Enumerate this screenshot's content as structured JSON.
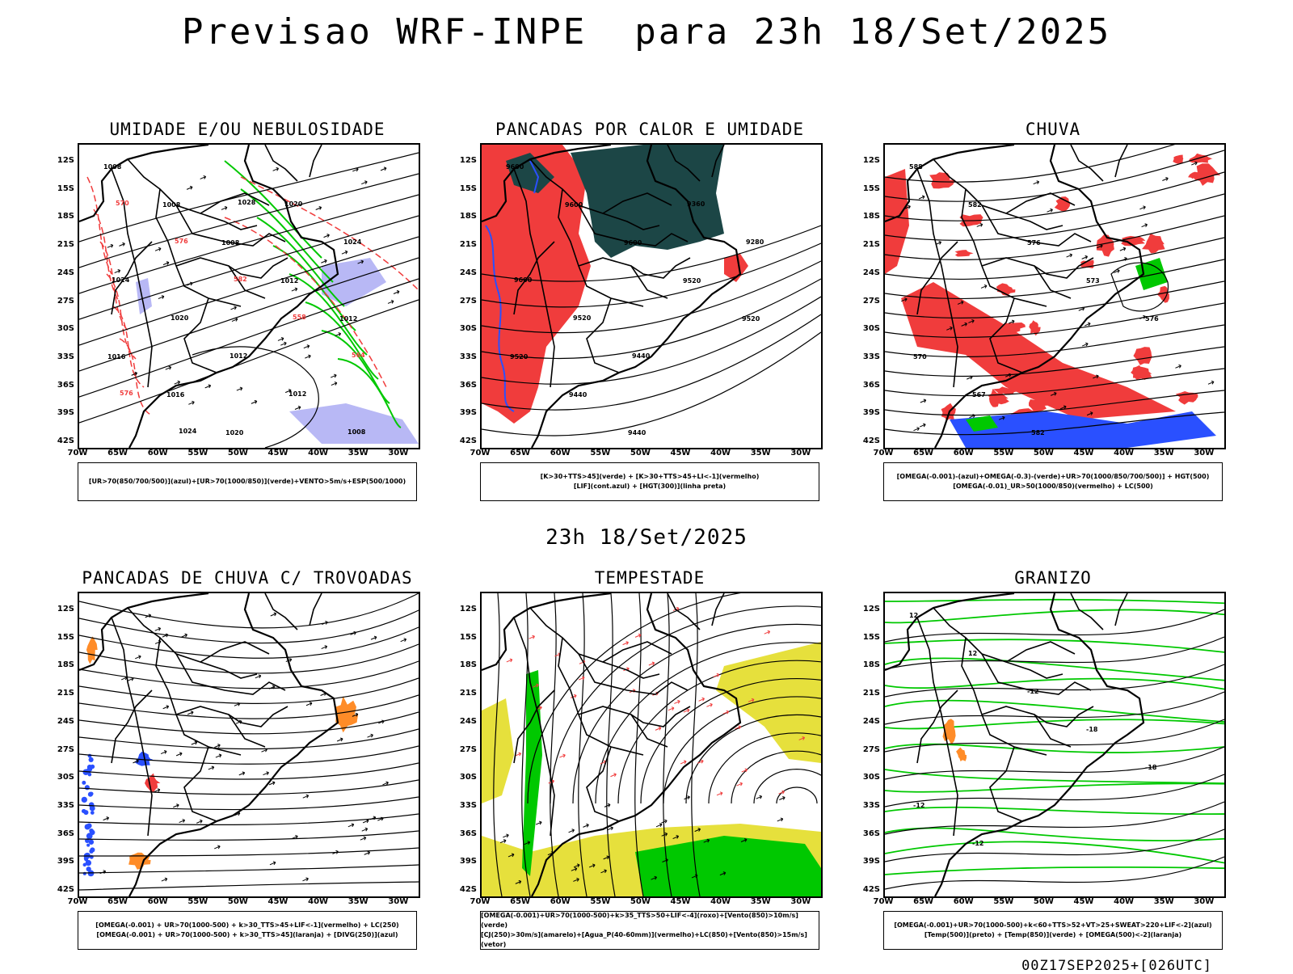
{
  "title": "Previsao WRF-INPE  para 23h 18/Set/2025",
  "mid_title": "23h 18/Set/2025",
  "footer": "00Z17SEP2025+[026UTC]",
  "lat_labels": [
    "12S",
    "15S",
    "18S",
    "21S",
    "24S",
    "27S",
    "30S",
    "33S",
    "36S",
    "39S",
    "42S"
  ],
  "lon_labels": [
    "70W",
    "65W",
    "60W",
    "55W",
    "50W",
    "45W",
    "40W",
    "35W",
    "30W"
  ],
  "colors": {
    "red": "#f03c3c",
    "green": "#00c800",
    "blue": "#2a50ff",
    "lightblue": "#b8b8f5",
    "darkteal": "#1c4646",
    "yellow": "#e6e03c",
    "orange": "#ff8c28",
    "black": "#000000"
  },
  "panels": [
    {
      "title": "UMIDADE E/OU NEBULOSIDADE",
      "legend": [
        "[UR>70(850/700/500)](azul)+[UR>70(1000/850)](verde)+VENTO>5m/s+ESP(500/1000)"
      ],
      "contour_labels": [
        "1008",
        "1008",
        "1008",
        "1012",
        "1012",
        "1016",
        "1016",
        "1020",
        "1020",
        "1024",
        "1024",
        "1020",
        "1012",
        "1012",
        "1008",
        "570",
        "576",
        "582",
        "558",
        "564",
        "576",
        "1024",
        "1028"
      ]
    },
    {
      "title": "PANCADAS POR CALOR E UMIDADE",
      "legend": [
        "[K>30+TTS>45](verde) + [K>30+TTS>45+LI<-1](vermelho)",
        "[LIF](cont.azul) + [HGT(300)](linha preta)"
      ],
      "contour_labels": [
        "9600",
        "9600",
        "9600",
        "9520",
        "9520",
        "9520",
        "9440",
        "9440",
        "9360",
        "9280",
        "9600",
        "9520",
        "9440"
      ]
    },
    {
      "title": "CHUVA",
      "legend": [
        "[OMEGA(-0.001)-(azul)+OMEGA(-0.3)-(verde)+UR>70(1000/850/700/500)] + HGT(500)",
        "[OMEGA(-0.01)_UR>50(1000/850)(vermelho) + LC(500)"
      ],
      "contour_labels": [
        "588",
        "582",
        "576",
        "573",
        "576",
        "570",
        "567",
        "582"
      ]
    },
    {
      "title": "PANCADAS DE CHUVA C/ TROVOADAS",
      "legend": [
        "[OMEGA(-0.001) + UR>70(1000-500) + k>30_TTS>45+LIF<-1](vermelho) + LC(250)",
        "[OMEGA(-0.001) + UR>70(1000-500) + k>30_TTS>45](laranja) + [DIVG(250)](azul)"
      ],
      "contour_labels": []
    },
    {
      "title": "TEMPESTADE",
      "legend": [
        "[OMEGA(-0.001)+UR>70(1000-500)+k>35_TTS>50+LIF<-4](roxo)+[Vento(850)>10m/s](verde)",
        "[CJ(250)>30m/s](amarelo)+[Agua_P(40-60mm)](vermelho)+LC(850)+[Vento(850)>15m/s](vetor)"
      ],
      "contour_labels": []
    },
    {
      "title": "GRANIZO",
      "legend": [
        "[OMEGA(-0.001)+UR>70(1000-500)+k<60+TTS>52+VT>25+SWEAT>220+LIF<-2](azul)",
        "[Temp(500)](preto) + [Temp(850)](verde) + [OMEGA(500)<-2](laranja)"
      ],
      "contour_labels": [
        "12",
        "12",
        "-12",
        "-18",
        "-18",
        "-12",
        "-12"
      ]
    }
  ]
}
